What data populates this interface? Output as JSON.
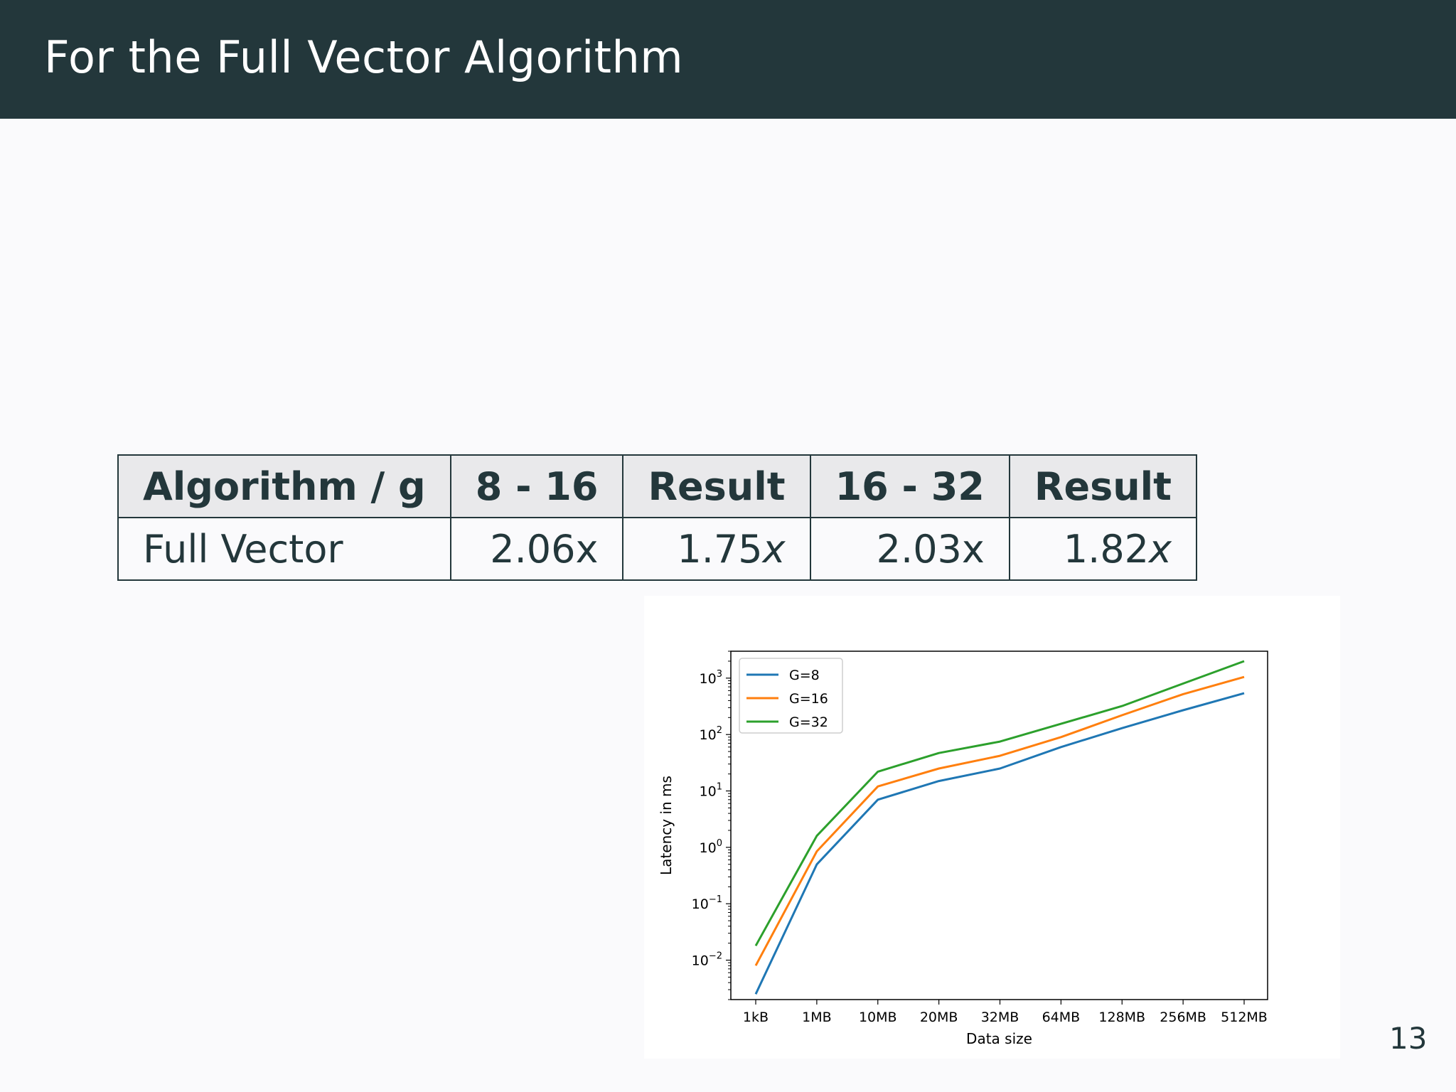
{
  "header": {
    "title": "For the Full Vector Algorithm"
  },
  "table": {
    "headers": [
      "Algorithm / g",
      "8 - 16",
      "Result",
      "16 - 32",
      "Result"
    ],
    "row": {
      "algorithm": "Full Vector",
      "ratio_8_16": "2.06x",
      "result_8_16": "1.75",
      "result_8_16_suffix": "x",
      "ratio_16_32": "2.03x",
      "result_16_32": "1.82",
      "result_16_32_suffix": "x"
    }
  },
  "chart_data": {
    "type": "line",
    "xlabel": "Data size",
    "ylabel": "Latency in ms",
    "categories": [
      "1kB",
      "1MB",
      "10MB",
      "20MB",
      "32MB",
      "64MB",
      "128MB",
      "256MB",
      "512MB"
    ],
    "yscale": "log",
    "ylim": [
      0.002,
      3000
    ],
    "ytick_exponents": [
      -2,
      -1,
      0,
      1,
      2,
      3
    ],
    "legend_position": "upper-left",
    "grid": false,
    "series": [
      {
        "name": "G=8",
        "color": "#1f77b4",
        "values": [
          0.0025,
          0.5,
          7,
          15,
          25,
          60,
          130,
          270,
          540
        ]
      },
      {
        "name": "G=16",
        "color": "#ff7f0e",
        "values": [
          0.008,
          0.85,
          12,
          25,
          42,
          90,
          220,
          520,
          1050
        ]
      },
      {
        "name": "G=32",
        "color": "#2ca02c",
        "values": [
          0.018,
          1.6,
          22,
          47,
          75,
          155,
          320,
          800,
          2000
        ]
      }
    ]
  },
  "page_number": "13"
}
